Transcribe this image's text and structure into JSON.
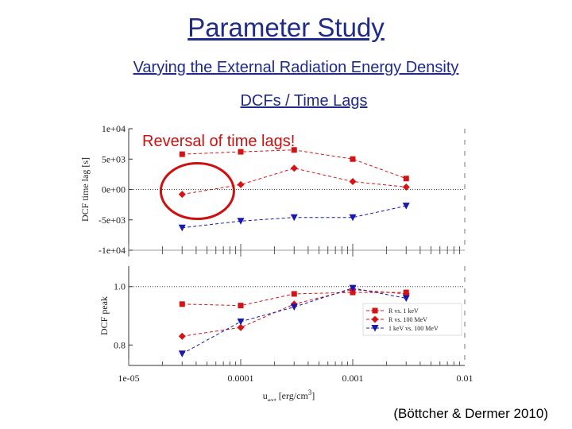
{
  "slide": {
    "title": "Parameter Study",
    "subtitle": "Varying the External Radiation Energy Density",
    "subtitle2": "DCFs / Time Lags",
    "citation": "(Böttcher & Dermer 2010)"
  },
  "colors": {
    "title": "#1f2a8a",
    "red_series": "#d41414",
    "blue_series": "#1818b0",
    "annotation": "#cc1111"
  },
  "chart_data": [
    {
      "type": "scatter",
      "panel": "top",
      "ylabel": "DCF time lag [s]",
      "xscale": "log",
      "xlim": [
        1e-05,
        0.01
      ],
      "ylim": [
        -10000,
        10000
      ],
      "yticks": [
        "1e+04",
        "5e+03",
        "0e+00",
        "-5e+03",
        "-1e+04"
      ],
      "ytick_values": [
        10000,
        5000,
        0,
        -5000,
        -10000
      ],
      "zero_line": true,
      "annotation": "Reversal of time lags!",
      "series": [
        {
          "key": "r_1kev",
          "style": "red-square-dashed",
          "x": [
            3e-05,
            0.0001,
            0.0003,
            0.001,
            0.003
          ],
          "y": [
            5800,
            6200,
            6500,
            5000,
            1800
          ]
        },
        {
          "key": "r_100mev",
          "style": "red-diamond-dashed",
          "x": [
            3e-05,
            0.0001,
            0.0003,
            0.001,
            0.003
          ],
          "y": [
            -800,
            800,
            3500,
            1300,
            400
          ]
        },
        {
          "key": "kev_mev",
          "style": "blue-triangle-dashed",
          "x": [
            3e-05,
            0.0001,
            0.0003,
            0.001,
            0.003
          ],
          "y": [
            -6300,
            -5200,
            -4600,
            -4600,
            -2700
          ]
        }
      ]
    },
    {
      "type": "scatter",
      "panel": "bottom",
      "xlabel": "u_ext [erg/cm^3]",
      "xlabel_main": "u",
      "xlabel_sub": "ext",
      "xlabel_rest": " [erg/cm",
      "xlabel_sup": "3",
      "xlabel_end": "]",
      "ylabel": "DCF peak",
      "xscale": "log",
      "xlim": [
        1e-05,
        0.01
      ],
      "ylim": [
        0.73,
        1.07
      ],
      "xticks": [
        "1e-05",
        "0.0001",
        "0.001",
        "0.01"
      ],
      "xtick_values": [
        1e-05,
        0.0001,
        0.001,
        0.01
      ],
      "yticks": [
        "1.0",
        "0.8"
      ],
      "ytick_values": [
        1.0,
        0.8
      ],
      "ref_line": 1.0,
      "legend_position": "bottom-right",
      "series": [
        {
          "key": "r_1kev",
          "name": "R vs. 1 keV",
          "style": "red-square-dashed",
          "x": [
            3e-05,
            0.0001,
            0.0003,
            0.001,
            0.003
          ],
          "y": [
            0.94,
            0.935,
            0.975,
            0.98,
            0.98
          ]
        },
        {
          "key": "r_100mev",
          "name": "R vs. 100 MeV",
          "style": "red-diamond-dashed",
          "x": [
            3e-05,
            0.0001,
            0.0003,
            0.001,
            0.003
          ],
          "y": [
            0.83,
            0.86,
            0.94,
            0.99,
            0.975
          ]
        },
        {
          "key": "kev_mev",
          "name": "1 keV vs. 100 MeV",
          "style": "blue-triangle-dashed",
          "x": [
            3e-05,
            0.0001,
            0.0003,
            0.001,
            0.003
          ],
          "y": [
            0.77,
            0.88,
            0.93,
            0.995,
            0.96
          ]
        }
      ]
    }
  ]
}
